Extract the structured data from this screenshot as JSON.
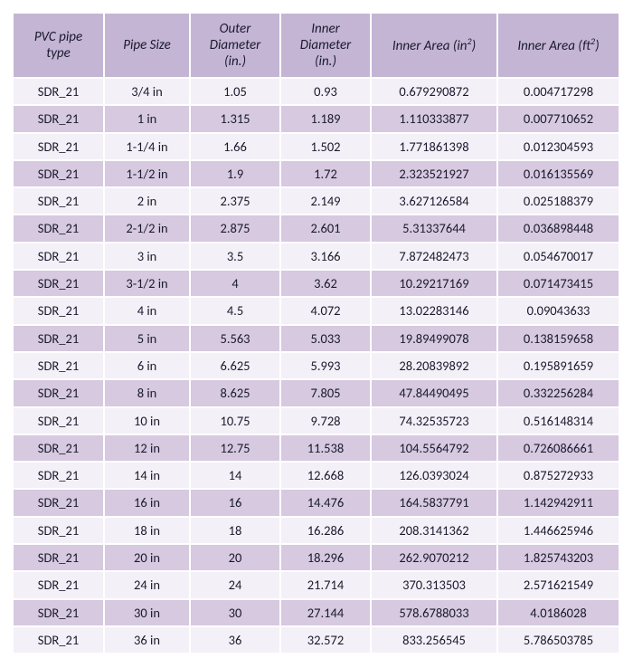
{
  "table": {
    "header_bg": "#c4b5d4",
    "row_alt_bg": "#d6c9e0",
    "row_bg": "#f4f0f7",
    "columns": [
      {
        "html": "PVC pipe<br>type"
      },
      {
        "html": "Pipe Size"
      },
      {
        "html": "Outer<br>Diameter<br>(in.)"
      },
      {
        "html": "Inner<br>Diameter<br>(in.)"
      },
      {
        "html": "Inner Area (in<sup>2</sup>)"
      },
      {
        "html": "Inner Area (ft<sup>2</sup>)"
      }
    ],
    "rows": [
      [
        "SDR_21",
        "3/4 in",
        "1.05",
        "0.93",
        "0.679290872",
        "0.004717298"
      ],
      [
        "SDR_21",
        "1 in",
        "1.315",
        "1.189",
        "1.110333877",
        "0.007710652"
      ],
      [
        "SDR_21",
        "1-1/4 in",
        "1.66",
        "1.502",
        "1.771861398",
        "0.012304593"
      ],
      [
        "SDR_21",
        "1-1/2 in",
        "1.9",
        "1.72",
        "2.323521927",
        "0.016135569"
      ],
      [
        "SDR_21",
        "2 in",
        "2.375",
        "2.149",
        "3.627126584",
        "0.025188379"
      ],
      [
        "SDR_21",
        "2-1/2 in",
        "2.875",
        "2.601",
        "5.31337644",
        "0.036898448"
      ],
      [
        "SDR_21",
        "3 in",
        "3.5",
        "3.166",
        "7.872482473",
        "0.054670017"
      ],
      [
        "SDR_21",
        "3-1/2 in",
        "4",
        "3.62",
        "10.29217169",
        "0.071473415"
      ],
      [
        "SDR_21",
        "4 in",
        "4.5",
        "4.072",
        "13.02283146",
        "0.09043633"
      ],
      [
        "SDR_21",
        "5 in",
        "5.563",
        "5.033",
        "19.89499078",
        "0.138159658"
      ],
      [
        "SDR_21",
        "6 in",
        "6.625",
        "5.993",
        "28.20839892",
        "0.195891659"
      ],
      [
        "SDR_21",
        "8 in",
        "8.625",
        "7.805",
        "47.84490495",
        "0.332256284"
      ],
      [
        "SDR_21",
        "10 in",
        "10.75",
        "9.728",
        "74.32535723",
        "0.516148314"
      ],
      [
        "SDR_21",
        "12 in",
        "12.75",
        "11.538",
        "104.5564792",
        "0.726086661"
      ],
      [
        "SDR_21",
        "14 in",
        "14",
        "12.668",
        "126.0393024",
        "0.875272933"
      ],
      [
        "SDR_21",
        "16 in",
        "16",
        "14.476",
        "164.5837791",
        "1.142942911"
      ],
      [
        "SDR_21",
        "18 in",
        "18",
        "16.286",
        "208.3141362",
        "1.446625946"
      ],
      [
        "SDR_21",
        "20 in",
        "20",
        "18.296",
        "262.9070212",
        "1.825743203"
      ],
      [
        "SDR_21",
        "24 in",
        "24",
        "21.714",
        "370.313503",
        "2.571621549"
      ],
      [
        "SDR_21",
        "30 in",
        "30",
        "27.144",
        "578.6788033",
        "4.0186028"
      ],
      [
        "SDR_21",
        "36 in",
        "36",
        "32.572",
        "833.256545",
        "5.786503785"
      ]
    ]
  }
}
